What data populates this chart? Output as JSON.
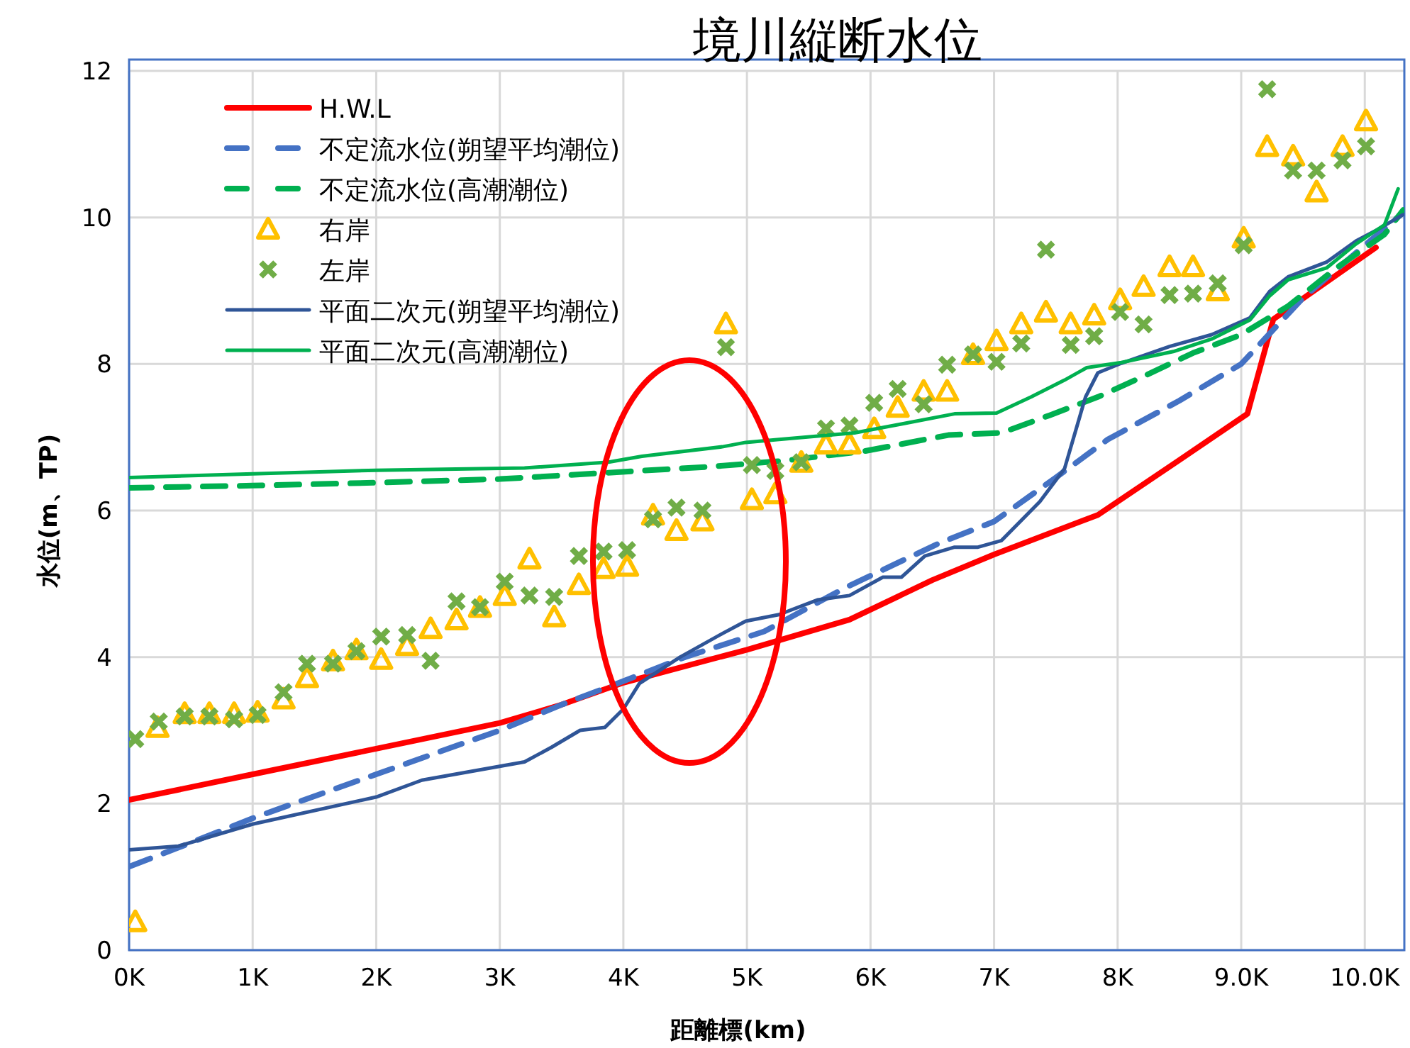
{
  "chart_data": {
    "type": "line",
    "title": "境川縦断水位",
    "xlabel": "距離標(km)",
    "ylabel": "水位(m、TP)",
    "xlim": [
      0,
      10.32
    ],
    "ylim": [
      0,
      12
    ],
    "xticks": [
      {
        "value": 0,
        "label": "0K"
      },
      {
        "value": 1,
        "label": "1K"
      },
      {
        "value": 2,
        "label": "2K"
      },
      {
        "value": 3,
        "label": "3K"
      },
      {
        "value": 4,
        "label": "4K"
      },
      {
        "value": 5,
        "label": "5K"
      },
      {
        "value": 6,
        "label": "6K"
      },
      {
        "value": 7,
        "label": "7K"
      },
      {
        "value": 8,
        "label": "8K"
      },
      {
        "value": 9,
        "label": "9.0K"
      },
      {
        "value": 10,
        "label": "10.0K"
      }
    ],
    "yticks": [
      0,
      2,
      4,
      6,
      8,
      10,
      12
    ],
    "grid": true,
    "legend": "top left",
    "series": [
      {
        "name": "H.W.L",
        "line_style": "solid",
        "color": "#ff0000",
        "x": [
          0,
          1,
          2,
          3,
          3.5,
          4,
          5,
          5.83,
          6.5,
          7,
          7.84,
          8.5,
          9.05,
          9.26,
          10.09
        ],
        "values": [
          2.05,
          2.4,
          2.75,
          3.1,
          3.35,
          3.65,
          4.1,
          4.51,
          5.05,
          5.4,
          5.94,
          6.69,
          7.32,
          8.61,
          9.59
        ]
      },
      {
        "name": "不定流水位(朔望平均潮位)",
        "line_style": "dashed",
        "color": "#4472c4",
        "x": [
          0,
          0.4,
          1,
          1.33,
          2,
          3,
          3.5,
          3.92,
          4.5,
          5.14,
          5.8,
          6.55,
          7,
          7.5,
          7.92,
          8.5,
          9,
          9.5,
          10.3
        ],
        "values": [
          1.14,
          1.4,
          1.8,
          2.0,
          2.4,
          3.0,
          3.35,
          3.62,
          4.0,
          4.35,
          4.95,
          5.55,
          5.85,
          6.45,
          6.97,
          7.5,
          8.0,
          8.9,
          10.05
        ]
      },
      {
        "name": "不定流水位(高潮潮位)",
        "line_style": "dashed",
        "color": "#00b050",
        "x": [
          0,
          1,
          2,
          3,
          3.31,
          4.72,
          5.3,
          5.95,
          6.63,
          7.06,
          7.45,
          7.84,
          8.22,
          8.61,
          9,
          9.38,
          9.77,
          10.16,
          10.31
        ],
        "values": [
          6.31,
          6.34,
          6.38,
          6.43,
          6.46,
          6.6,
          6.68,
          6.81,
          7.03,
          7.06,
          7.3,
          7.55,
          7.84,
          8.15,
          8.4,
          8.79,
          9.31,
          9.77,
          10.1
        ]
      },
      {
        "name": "右岸",
        "type": "scatter",
        "marker": "triangle",
        "color": "#ffc000",
        "x": [
          0.05,
          0.23,
          0.45,
          0.65,
          0.85,
          1.04,
          1.25,
          1.44,
          1.65,
          1.84,
          2.04,
          2.25,
          2.44,
          2.65,
          2.84,
          3.04,
          3.24,
          3.44,
          3.64,
          3.84,
          4.03,
          4.24,
          4.43,
          4.64,
          4.83,
          5.04,
          5.23,
          5.44,
          5.64,
          5.83,
          6.03,
          6.22,
          6.43,
          6.62,
          6.83,
          7.02,
          7.22,
          7.42,
          7.62,
          7.81,
          8.02,
          8.21,
          8.42,
          8.61,
          8.81,
          9.02,
          9.21,
          9.42,
          9.61,
          9.82,
          10.01
        ],
        "values": [
          0.39,
          3.04,
          3.23,
          3.23,
          3.23,
          3.25,
          3.43,
          3.72,
          3.95,
          4.1,
          3.97,
          4.16,
          4.39,
          4.51,
          4.68,
          4.84,
          5.34,
          4.55,
          4.99,
          5.21,
          5.24,
          5.94,
          5.73,
          5.86,
          8.55,
          6.15,
          6.23,
          6.66,
          6.91,
          6.91,
          7.12,
          7.41,
          7.63,
          7.63,
          8.13,
          8.32,
          8.55,
          8.71,
          8.55,
          8.67,
          8.88,
          9.06,
          9.33,
          9.33,
          9.0,
          9.72,
          10.97,
          10.84,
          10.35,
          10.97,
          11.32
        ]
      },
      {
        "name": "左岸",
        "type": "scatter",
        "marker": "cross",
        "color": "#70ad47",
        "x": [
          0.05,
          0.24,
          0.45,
          0.65,
          0.85,
          1.04,
          1.25,
          1.44,
          1.65,
          1.84,
          2.04,
          2.25,
          2.44,
          2.65,
          2.84,
          3.04,
          3.24,
          3.44,
          3.64,
          3.84,
          4.03,
          4.24,
          4.43,
          4.64,
          4.83,
          5.04,
          5.23,
          5.44,
          5.64,
          5.83,
          6.03,
          6.22,
          6.43,
          6.62,
          6.83,
          7.02,
          7.22,
          7.42,
          7.62,
          7.81,
          8.02,
          8.21,
          8.42,
          8.61,
          8.81,
          9.02,
          9.21,
          9.42,
          9.61,
          9.82,
          10.01
        ],
        "values": [
          2.88,
          3.12,
          3.19,
          3.19,
          3.15,
          3.21,
          3.52,
          3.91,
          3.91,
          4.08,
          4.28,
          4.3,
          3.95,
          4.76,
          4.68,
          5.03,
          4.84,
          4.82,
          5.38,
          5.44,
          5.46,
          5.88,
          6.04,
          6.0,
          8.23,
          6.62,
          6.54,
          6.66,
          7.12,
          7.16,
          7.47,
          7.66,
          7.45,
          7.99,
          8.13,
          8.03,
          8.28,
          9.56,
          8.26,
          8.38,
          8.71,
          8.54,
          8.94,
          8.96,
          9.1,
          9.62,
          11.75,
          10.64,
          10.64,
          10.78,
          10.97
        ]
      },
      {
        "name": "平面二次元(朔望平均潮位)",
        "line_style": "solid",
        "color": "#2f5597",
        "x": [
          0,
          0.4,
          1,
          2,
          2.37,
          3.2,
          3.42,
          3.65,
          3.85,
          4,
          4.13,
          4.46,
          4.8,
          4.99,
          5.26,
          5.57,
          5.83,
          6.1,
          6.25,
          6.44,
          6.68,
          6.87,
          7.06,
          7.37,
          7.57,
          7.74,
          7.84,
          8.03,
          8.42,
          8.76,
          9.07,
          9.23,
          9.38,
          9.69,
          9.93,
          10.11,
          10.31
        ],
        "values": [
          1.37,
          1.42,
          1.72,
          2.09,
          2.32,
          2.57,
          2.77,
          3.0,
          3.04,
          3.29,
          3.64,
          4.0,
          4.32,
          4.49,
          4.58,
          4.78,
          4.84,
          5.09,
          5.09,
          5.38,
          5.5,
          5.5,
          5.59,
          6.12,
          6.57,
          7.55,
          7.88,
          8.01,
          8.24,
          8.4,
          8.63,
          8.99,
          9.19,
          9.39,
          9.68,
          9.84,
          10.04
        ]
      },
      {
        "name": "平面二次元(高潮潮位)",
        "line_style": "solid",
        "color": "#00b050",
        "x": [
          0,
          1,
          2,
          3.2,
          3.88,
          4.15,
          4.8,
          4.99,
          5.26,
          5.87,
          6.25,
          6.68,
          7.02,
          7.3,
          7.57,
          7.75,
          8.03,
          8.45,
          8.76,
          9.07,
          9.23,
          9.38,
          9.69,
          9.93,
          10.16,
          10.27
        ],
        "values": [
          6.45,
          6.5,
          6.55,
          6.58,
          6.66,
          6.74,
          6.87,
          6.93,
          6.97,
          7.06,
          7.18,
          7.32,
          7.33,
          7.55,
          7.78,
          7.95,
          8.02,
          8.17,
          8.34,
          8.6,
          8.93,
          9.15,
          9.31,
          9.64,
          9.9,
          10.39
        ]
      }
    ]
  }
}
